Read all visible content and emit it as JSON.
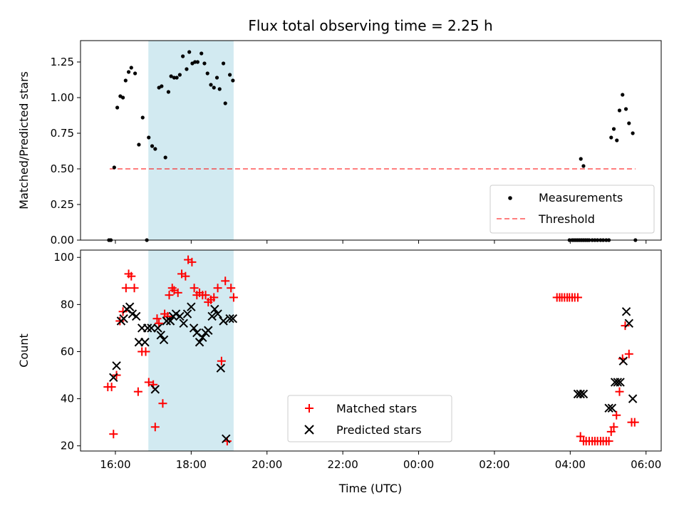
{
  "chart_data": {
    "title": "Flux total observing time = 2.25 h",
    "xlabel": "Time (UTC)",
    "x_ticks": [
      "16:00",
      "18:00",
      "20:00",
      "22:00",
      "00:00",
      "02:00",
      "04:00",
      "06:00"
    ],
    "x_tick_hours": [
      16,
      18,
      20,
      22,
      24,
      26,
      28,
      30
    ],
    "x_range_hours": [
      15.08,
      30.4
    ],
    "shaded_span_hours": [
      16.87,
      19.12
    ],
    "shade_color": "#add8e6",
    "top": {
      "type": "scatter",
      "ylabel": "Matched/Predicted stars",
      "ylim": [
        0,
        1.4
      ],
      "y_ticks": [
        "0.00",
        "0.25",
        "0.50",
        "0.75",
        "1.00",
        "1.25"
      ],
      "y_tick_values": [
        0,
        0.25,
        0.5,
        0.75,
        1.0,
        1.25
      ],
      "threshold": {
        "value": 0.5,
        "x": [
          15.85,
          29.72
        ],
        "color": "#ff0000",
        "label": "Threshold"
      },
      "measurements_label": "Measurements",
      "legend_position": "lower right",
      "points": [
        [
          15.83,
          0
        ],
        [
          15.88,
          0
        ],
        [
          15.97,
          0.51
        ],
        [
          16.05,
          0.93
        ],
        [
          16.13,
          1.01
        ],
        [
          16.2,
          1.0
        ],
        [
          16.27,
          1.12
        ],
        [
          16.35,
          1.18
        ],
        [
          16.42,
          1.21
        ],
        [
          16.52,
          1.17
        ],
        [
          16.62,
          0.67
        ],
        [
          16.72,
          0.86
        ],
        [
          16.83,
          0
        ],
        [
          16.88,
          0.72
        ],
        [
          16.97,
          0.66
        ],
        [
          17.05,
          0.64
        ],
        [
          17.15,
          1.07
        ],
        [
          17.22,
          1.08
        ],
        [
          17.32,
          0.58
        ],
        [
          17.4,
          1.04
        ],
        [
          17.47,
          1.15
        ],
        [
          17.55,
          1.14
        ],
        [
          17.62,
          1.14
        ],
        [
          17.7,
          1.16
        ],
        [
          17.78,
          1.29
        ],
        [
          17.88,
          1.2
        ],
        [
          17.95,
          1.32
        ],
        [
          18.03,
          1.24
        ],
        [
          18.1,
          1.25
        ],
        [
          18.17,
          1.25
        ],
        [
          18.27,
          1.31
        ],
        [
          18.35,
          1.24
        ],
        [
          18.43,
          1.17
        ],
        [
          18.52,
          1.09
        ],
        [
          18.6,
          1.07
        ],
        [
          18.68,
          1.14
        ],
        [
          18.75,
          1.06
        ],
        [
          18.85,
          1.24
        ],
        [
          18.9,
          0.96
        ],
        [
          19.02,
          1.16
        ],
        [
          19.1,
          1.12
        ],
        [
          27.98,
          0
        ],
        [
          28.05,
          0
        ],
        [
          28.1,
          0
        ],
        [
          28.15,
          0
        ],
        [
          28.2,
          0
        ],
        [
          28.25,
          0
        ],
        [
          28.3,
          0
        ],
        [
          28.35,
          0
        ],
        [
          28.4,
          0
        ],
        [
          28.45,
          0
        ],
        [
          28.28,
          0.57
        ],
        [
          28.35,
          0.52
        ],
        [
          28.5,
          0
        ],
        [
          28.58,
          0
        ],
        [
          28.65,
          0
        ],
        [
          28.72,
          0
        ],
        [
          28.8,
          0
        ],
        [
          28.87,
          0
        ],
        [
          28.95,
          0
        ],
        [
          29.02,
          0
        ],
        [
          29.08,
          0.72
        ],
        [
          29.15,
          0.78
        ],
        [
          29.23,
          0.7
        ],
        [
          29.3,
          0.91
        ],
        [
          29.38,
          1.02
        ],
        [
          29.47,
          0.92
        ],
        [
          29.55,
          0.82
        ],
        [
          29.65,
          0.75
        ],
        [
          29.72,
          0
        ]
      ]
    },
    "bottom": {
      "type": "scatter",
      "ylabel": "Count",
      "ylim": [
        17.8,
        103.1
      ],
      "y_ticks": [
        "20",
        "40",
        "60",
        "80",
        "100"
      ],
      "y_tick_values": [
        20,
        40,
        60,
        80,
        100
      ],
      "legend_position": "lower center",
      "series": [
        {
          "name": "Matched stars",
          "marker": "+",
          "color": "#ff0000",
          "points": [
            [
              15.8,
              45
            ],
            [
              15.9,
              45
            ],
            [
              15.95,
              25
            ],
            [
              16.03,
              50
            ],
            [
              16.12,
              73
            ],
            [
              16.2,
              77
            ],
            [
              16.28,
              87
            ],
            [
              16.35,
              93
            ],
            [
              16.42,
              92
            ],
            [
              16.5,
              87
            ],
            [
              16.6,
              43
            ],
            [
              16.7,
              60
            ],
            [
              16.8,
              60
            ],
            [
              16.88,
              47
            ],
            [
              17.0,
              46
            ],
            [
              17.05,
              28
            ],
            [
              17.1,
              74
            ],
            [
              17.15,
              72
            ],
            [
              17.25,
              38
            ],
            [
              17.3,
              76
            ],
            [
              17.38,
              75
            ],
            [
              17.42,
              84
            ],
            [
              17.5,
              87
            ],
            [
              17.55,
              86
            ],
            [
              17.65,
              85
            ],
            [
              17.75,
              93
            ],
            [
              17.85,
              92
            ],
            [
              17.92,
              99
            ],
            [
              18.02,
              98
            ],
            [
              18.08,
              87
            ],
            [
              18.15,
              84
            ],
            [
              18.22,
              85
            ],
            [
              18.3,
              84
            ],
            [
              18.38,
              84
            ],
            [
              18.45,
              81
            ],
            [
              18.52,
              82
            ],
            [
              18.6,
              83
            ],
            [
              18.7,
              87
            ],
            [
              18.8,
              56
            ],
            [
              18.9,
              90
            ],
            [
              18.95,
              22
            ],
            [
              19.05,
              87
            ],
            [
              19.12,
              83
            ],
            [
              27.65,
              83
            ],
            [
              27.72,
              83
            ],
            [
              27.78,
              83
            ],
            [
              27.85,
              83
            ],
            [
              27.92,
              83
            ],
            [
              27.98,
              83
            ],
            [
              28.05,
              83
            ],
            [
              28.12,
              83
            ],
            [
              28.2,
              83
            ],
            [
              28.27,
              24
            ],
            [
              28.35,
              22
            ],
            [
              28.42,
              22
            ],
            [
              28.5,
              22
            ],
            [
              28.58,
              22
            ],
            [
              28.65,
              22
            ],
            [
              28.72,
              22
            ],
            [
              28.8,
              22
            ],
            [
              28.87,
              22
            ],
            [
              28.95,
              22
            ],
            [
              29.02,
              22
            ],
            [
              29.08,
              26
            ],
            [
              29.15,
              28
            ],
            [
              29.22,
              33
            ],
            [
              29.3,
              43
            ],
            [
              29.38,
              57
            ],
            [
              29.45,
              71
            ],
            [
              29.55,
              59
            ],
            [
              29.62,
              30
            ],
            [
              29.7,
              30
            ]
          ]
        },
        {
          "name": "Predicted stars",
          "marker": "x",
          "color": "#000000",
          "points": [
            [
              15.95,
              49
            ],
            [
              16.03,
              54
            ],
            [
              16.15,
              73
            ],
            [
              16.22,
              74
            ],
            [
              16.3,
              78
            ],
            [
              16.38,
              79
            ],
            [
              16.45,
              76
            ],
            [
              16.55,
              75
            ],
            [
              16.62,
              64
            ],
            [
              16.7,
              70
            ],
            [
              16.78,
              64
            ],
            [
              16.85,
              70
            ],
            [
              16.95,
              70
            ],
            [
              17.05,
              44
            ],
            [
              17.12,
              70
            ],
            [
              17.2,
              67
            ],
            [
              17.28,
              65
            ],
            [
              17.35,
              73
            ],
            [
              17.45,
              73
            ],
            [
              17.52,
              75
            ],
            [
              17.6,
              76
            ],
            [
              17.7,
              75
            ],
            [
              17.8,
              72
            ],
            [
              17.9,
              76
            ],
            [
              18.0,
              79
            ],
            [
              18.07,
              70
            ],
            [
              18.15,
              68
            ],
            [
              18.22,
              64
            ],
            [
              18.3,
              66
            ],
            [
              18.38,
              68
            ],
            [
              18.45,
              69
            ],
            [
              18.55,
              75
            ],
            [
              18.62,
              78
            ],
            [
              18.7,
              76
            ],
            [
              18.78,
              53
            ],
            [
              18.85,
              73
            ],
            [
              18.92,
              23
            ],
            [
              19.02,
              74
            ],
            [
              19.1,
              74
            ],
            [
              28.2,
              42
            ],
            [
              28.27,
              42
            ],
            [
              28.35,
              42
            ],
            [
              29.02,
              36
            ],
            [
              29.1,
              36
            ],
            [
              29.18,
              47
            ],
            [
              29.25,
              47
            ],
            [
              29.32,
              47
            ],
            [
              29.4,
              56
            ],
            [
              29.48,
              77
            ],
            [
              29.55,
              72
            ],
            [
              29.65,
              40
            ]
          ]
        }
      ]
    }
  }
}
